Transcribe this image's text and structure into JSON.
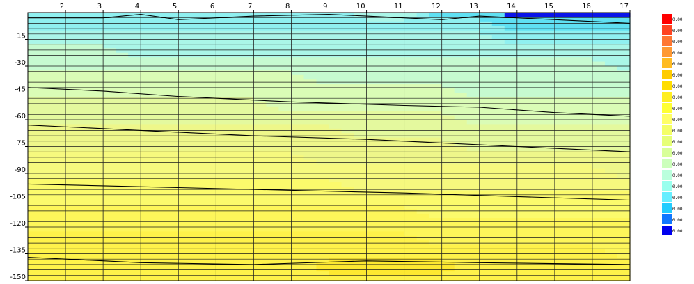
{
  "chart_data": {
    "type": "heatmap",
    "title": "",
    "xlabel": "",
    "ylabel": "",
    "x": [
      1,
      2,
      3,
      4,
      5,
      6,
      7,
      8,
      9,
      10,
      11,
      12,
      13,
      14,
      15,
      16,
      17
    ],
    "x_tick_labels": [
      "2",
      "3",
      "4",
      "5",
      "6",
      "7",
      "8",
      "9",
      "10",
      "11",
      "12",
      "13",
      "14",
      "15",
      "16",
      "17"
    ],
    "x_tick_values": [
      2,
      3,
      4,
      5,
      6,
      7,
      8,
      9,
      10,
      11,
      12,
      13,
      14,
      15,
      16,
      17
    ],
    "xlim": [
      1,
      17
    ],
    "y_tick_labels": [
      "-15",
      "-30",
      "-45",
      "-60",
      "-75",
      "-90",
      "-105",
      "-120",
      "-135",
      "-150"
    ],
    "y_tick_values": [
      -15,
      -30,
      -45,
      -60,
      -75,
      -90,
      -105,
      -120,
      -135,
      -150
    ],
    "ylim": [
      -150,
      0
    ],
    "grid": true,
    "legend_placement": "right",
    "legend_labels": [
      "0.00",
      "0.00",
      "0.00",
      "0.00",
      "0.00",
      "0.00",
      "0.00",
      "0.00",
      "0.00",
      "0.00",
      "0.00",
      "0.00",
      "0.00",
      "0.00",
      "0.00",
      "0.00",
      "0.00",
      "0.00",
      "0.00",
      "0.00"
    ],
    "legend_colors": [
      "#ff0000",
      "#ff4422",
      "#ff7733",
      "#ff9933",
      "#ffbb22",
      "#ffcc00",
      "#ffdd00",
      "#ffee22",
      "#ffff33",
      "#ffff66",
      "#f4ff66",
      "#e6ff77",
      "#d8ff99",
      "#ccffbb",
      "#bbffdd",
      "#99ffee",
      "#66eeff",
      "#22ccff",
      "#1177ff",
      "#0000ee"
    ],
    "band_colors": [
      "#4f5bff",
      "#0a14e8",
      "#5fe0f2",
      "#8ff0f0",
      "#aaf6e8",
      "#c6fad0",
      "#dafcb6",
      "#e4f99e",
      "#eef78a",
      "#f6f97e",
      "#fbfa6c",
      "#fdf65a",
      "#fef24a",
      "#fde830",
      "#f8d624"
    ],
    "levels": [
      0,
      1,
      2,
      3,
      4,
      5,
      6,
      7,
      8,
      9,
      10,
      11,
      12,
      13,
      14
    ],
    "z": [
      [
        3,
        3,
        3,
        3,
        3,
        3,
        3,
        3,
        3,
        4,
        4,
        2,
        2,
        1,
        1,
        1,
        1
      ],
      [
        3,
        3,
        3,
        3,
        3,
        3,
        3,
        3,
        3,
        3,
        3,
        3,
        3,
        2,
        2,
        2,
        2
      ],
      [
        4,
        4,
        4,
        4,
        4,
        4,
        4,
        4,
        4,
        4,
        4,
        4,
        4,
        3,
        3,
        3,
        3
      ],
      [
        5,
        5,
        5,
        4,
        4,
        4,
        4,
        4,
        4,
        4,
        4,
        4,
        4,
        4,
        4,
        4,
        4
      ],
      [
        5,
        5,
        5,
        5,
        5,
        5,
        5,
        5,
        5,
        5,
        5,
        5,
        5,
        5,
        5,
        5,
        4
      ],
      [
        6,
        6,
        6,
        6,
        6,
        6,
        6,
        6,
        5,
        5,
        5,
        5,
        5,
        5,
        5,
        5,
        5
      ],
      [
        6,
        6,
        6,
        6,
        6,
        6,
        6,
        6,
        6,
        6,
        6,
        6,
        5,
        5,
        5,
        5,
        5
      ],
      [
        7,
        7,
        7,
        7,
        7,
        7,
        7,
        6,
        6,
        6,
        6,
        6,
        6,
        6,
        6,
        6,
        6
      ],
      [
        7,
        7,
        7,
        7,
        7,
        7,
        7,
        7,
        7,
        7,
        7,
        7,
        6,
        6,
        6,
        6,
        6
      ],
      [
        8,
        8,
        8,
        8,
        8,
        8,
        8,
        8,
        8,
        7,
        7,
        7,
        7,
        7,
        7,
        7,
        7
      ],
      [
        8,
        8,
        8,
        8,
        8,
        8,
        8,
        8,
        8,
        8,
        8,
        8,
        7,
        7,
        7,
        7,
        7
      ],
      [
        9,
        9,
        9,
        9,
        9,
        9,
        9,
        9,
        8,
        8,
        8,
        8,
        8,
        8,
        8,
        8,
        8
      ],
      [
        9,
        9,
        9,
        9,
        9,
        9,
        9,
        9,
        9,
        9,
        9,
        9,
        9,
        9,
        9,
        9,
        8
      ],
      [
        10,
        10,
        10,
        10,
        10,
        10,
        10,
        10,
        10,
        9,
        9,
        9,
        9,
        9,
        9,
        9,
        9
      ],
      [
        10,
        10,
        10,
        10,
        10,
        10,
        10,
        10,
        10,
        10,
        10,
        10,
        10,
        10,
        10,
        10,
        10
      ],
      [
        11,
        11,
        11,
        11,
        11,
        11,
        11,
        11,
        11,
        11,
        11,
        10,
        10,
        10,
        10,
        10,
        10
      ],
      [
        11,
        11,
        11,
        11,
        11,
        11,
        11,
        11,
        11,
        11,
        11,
        11,
        11,
        11,
        11,
        11,
        11
      ],
      [
        12,
        12,
        12,
        12,
        12,
        12,
        12,
        12,
        12,
        12,
        12,
        11,
        11,
        11,
        11,
        11,
        11
      ],
      [
        12,
        12,
        12,
        12,
        12,
        12,
        12,
        12,
        12,
        12,
        12,
        12,
        12,
        12,
        12,
        12,
        11
      ],
      [
        12,
        12,
        12,
        12,
        12,
        12,
        12,
        12,
        13,
        13,
        13,
        13,
        12,
        12,
        12,
        12,
        12
      ],
      [
        12,
        12,
        12,
        12,
        12,
        12,
        12,
        12,
        12,
        12,
        12,
        12,
        12,
        12,
        12,
        12,
        12
      ]
    ]
  }
}
